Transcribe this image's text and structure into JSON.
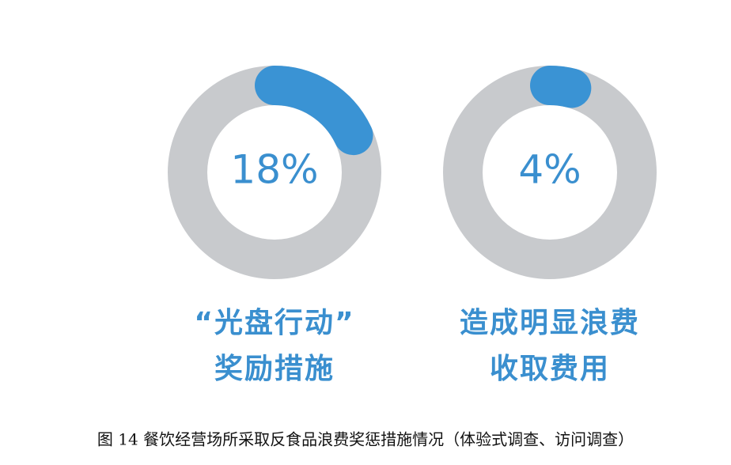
{
  "chart_data": [
    {
      "type": "donut",
      "values": [
        18
      ],
      "value_labels": [
        "18%"
      ],
      "label": [
        "“光盘行动”",
        "奖励措施"
      ],
      "color": "#3a93d4",
      "track_color": "#c8cacd"
    },
    {
      "type": "donut",
      "values": [
        4
      ],
      "value_labels": [
        "4%"
      ],
      "label": [
        "造成明显浪费",
        "收取费用"
      ],
      "color": "#3a93d4",
      "track_color": "#c8cacd"
    }
  ],
  "caption": "图 14 餐饮经营场所采取反食品浪费奖惩措施情况（体验式调查、访问调查）"
}
